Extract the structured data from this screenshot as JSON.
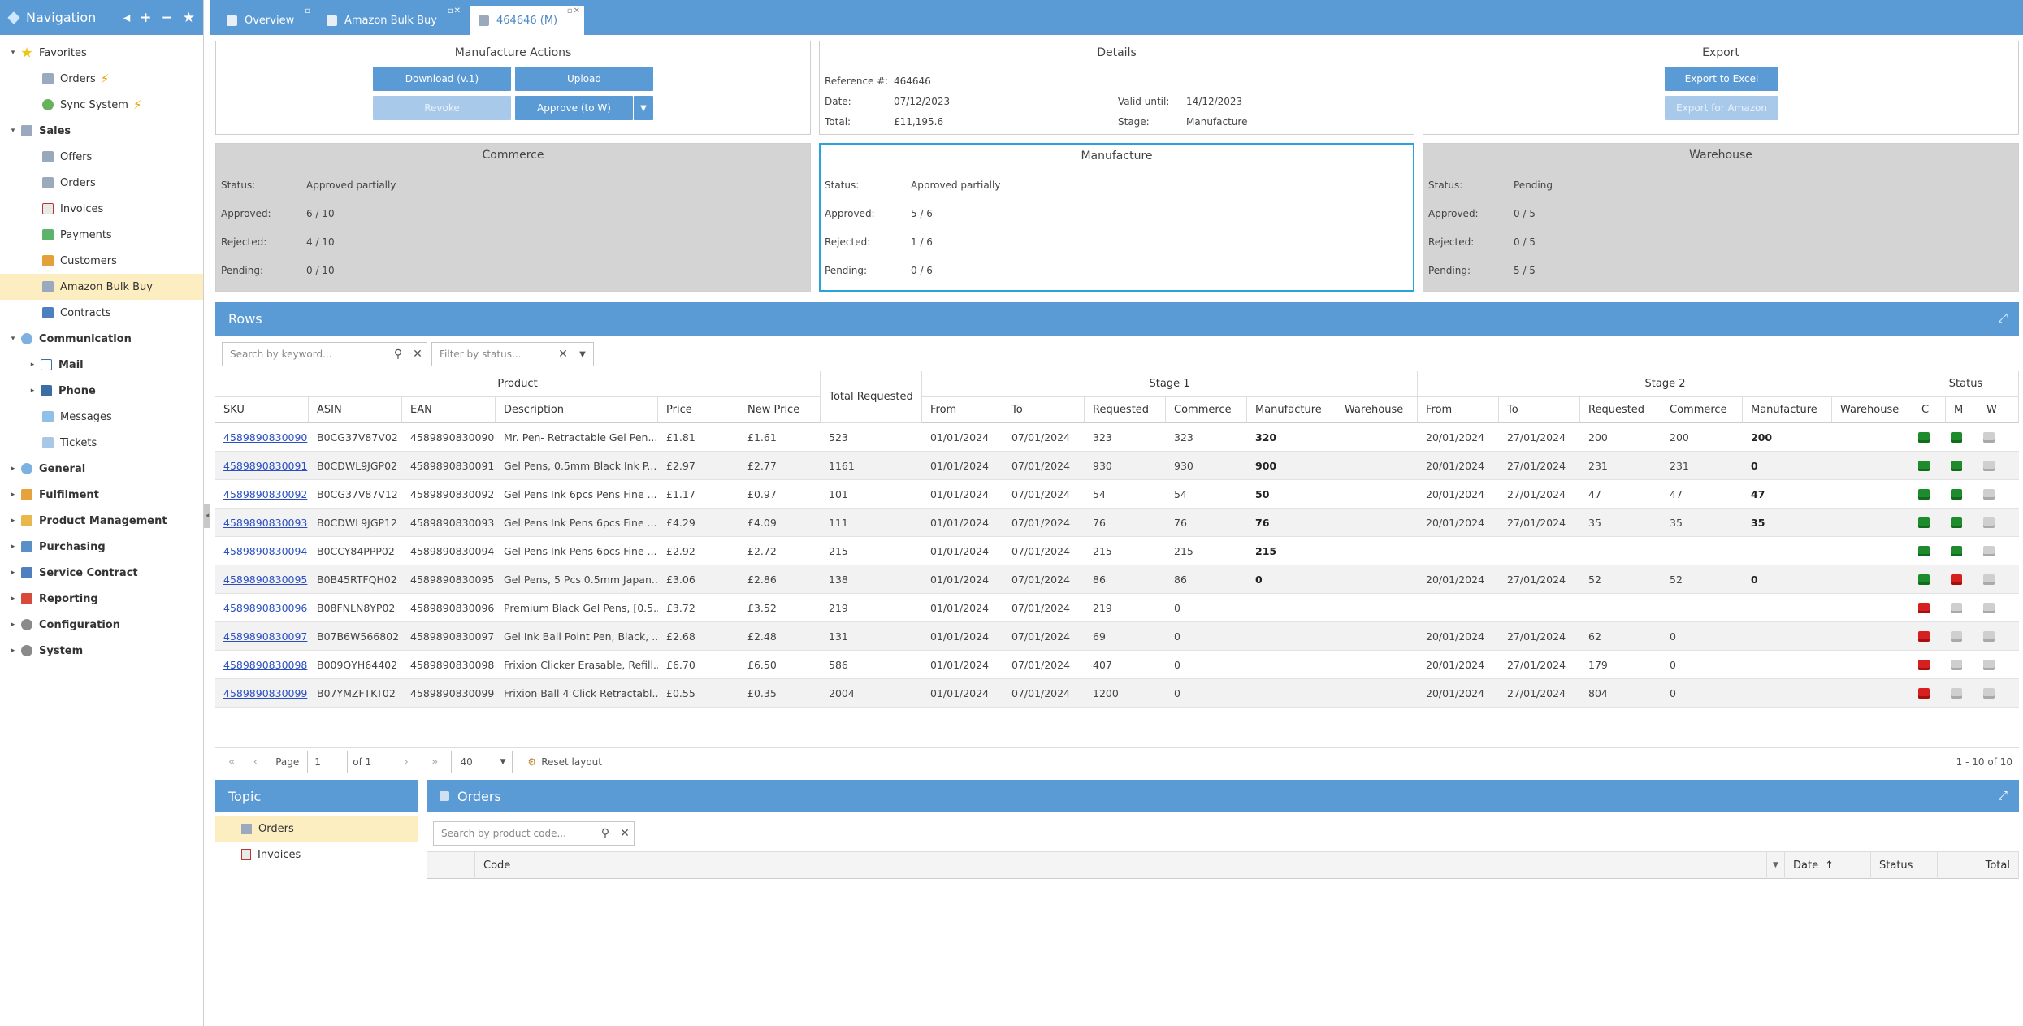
{
  "nav": {
    "title": "Navigation",
    "tree": [
      {
        "label": "Favorites",
        "level": 0,
        "bold": false,
        "arrow": "▾",
        "icon": "star-icon",
        "icls": "star"
      },
      {
        "label": "Orders",
        "level": 2,
        "icon": "box-icon",
        "icls": "box",
        "bolt": true
      },
      {
        "label": "Sync System",
        "level": 2,
        "icon": "sync-icon",
        "icls": "sync",
        "bolt": true
      },
      {
        "label": "Sales",
        "level": 0,
        "bold": true,
        "arrow": "▾",
        "icon": "box-icon",
        "icls": "box"
      },
      {
        "label": "Offers",
        "level": 2,
        "icon": "box-icon",
        "icls": "box"
      },
      {
        "label": "Orders",
        "level": 2,
        "icon": "box-icon",
        "icls": "box"
      },
      {
        "label": "Invoices",
        "level": 2,
        "icon": "invoice-icon",
        "icls": "doc"
      },
      {
        "label": "Payments",
        "level": 2,
        "icon": "cash-icon",
        "icls": "cash"
      },
      {
        "label": "Customers",
        "level": 2,
        "icon": "people-icon",
        "icls": "people"
      },
      {
        "label": "Amazon Bulk Buy",
        "level": 2,
        "icon": "box-icon",
        "icls": "box",
        "selected": true
      },
      {
        "label": "Contracts",
        "level": 2,
        "icon": "contract-icon",
        "icls": "contract"
      },
      {
        "label": "Communication",
        "level": 0,
        "bold": true,
        "arrow": "▾",
        "icon": "comm-icon",
        "icls": "comm"
      },
      {
        "label": "Mail",
        "level": 1,
        "bold": true,
        "arrow": "▸",
        "icon": "mail-icon",
        "icls": "mail"
      },
      {
        "label": "Phone",
        "level": 1,
        "bold": true,
        "arrow": "▸",
        "icon": "phone-icon",
        "icls": "phone"
      },
      {
        "label": "Messages",
        "level": 2,
        "icon": "messages-icon",
        "icls": "msg"
      },
      {
        "label": "Tickets",
        "level": 2,
        "icon": "ticket-icon",
        "icls": "ticket"
      },
      {
        "label": "General",
        "level": 0,
        "bold": true,
        "arrow": "▸",
        "icon": "general-icon",
        "icls": "comm"
      },
      {
        "label": "Fulfilment",
        "level": 0,
        "bold": true,
        "arrow": "▸",
        "icon": "folder-icon",
        "icls": "folder"
      },
      {
        "label": "Product Management",
        "level": 0,
        "bold": true,
        "arrow": "▸",
        "icon": "package-icon",
        "icls": "pm"
      },
      {
        "label": "Purchasing",
        "level": 0,
        "bold": true,
        "arrow": "▸",
        "icon": "cart-icon",
        "icls": "cart"
      },
      {
        "label": "Service Contract",
        "level": 0,
        "bold": true,
        "arrow": "▸",
        "icon": "contract-icon",
        "icls": "contract"
      },
      {
        "label": "Reporting",
        "level": 0,
        "bold": true,
        "arrow": "▸",
        "icon": "report-icon",
        "icls": "report"
      },
      {
        "label": "Configuration",
        "level": 0,
        "bold": true,
        "arrow": "▸",
        "icon": "gear-icon",
        "icls": "gear"
      },
      {
        "label": "System",
        "level": 0,
        "bold": true,
        "arrow": "▸",
        "icon": "gear-icon",
        "icls": "gear"
      }
    ]
  },
  "tabs": [
    {
      "label": "Overview",
      "icon": "home-icon",
      "active": false
    },
    {
      "label": "Amazon Bulk Buy",
      "icon": "box-icon",
      "active": false
    },
    {
      "label": "464646 (M)",
      "icon": "box-icon",
      "active": true
    }
  ],
  "manufacture_actions": {
    "title": "Manufacture Actions",
    "download": "Download (v.1)",
    "upload": "Upload",
    "revoke": "Revoke",
    "approve": "Approve (to W)"
  },
  "details": {
    "title": "Details",
    "reference_label": "Reference #:",
    "reference": "464646",
    "date_label": "Date:",
    "date": "07/12/2023",
    "total_label": "Total:",
    "total": "£11,195.6",
    "valid_label": "Valid until:",
    "valid": "14/12/2023",
    "stage_label": "Stage:",
    "stage": "Manufacture"
  },
  "export": {
    "title": "Export",
    "excel": "Export to Excel",
    "amazon": "Export for Amazon"
  },
  "status_panels": [
    {
      "title": "Commerce",
      "status": "Approved partially",
      "approved": "6 / 10",
      "rejected": "4 / 10",
      "pending": "0 / 10"
    },
    {
      "title": "Manufacture",
      "status": "Approved partially",
      "approved": "5 / 6",
      "rejected": "1 / 6",
      "pending": "0 / 6"
    },
    {
      "title": "Warehouse",
      "status": "Pending",
      "approved": "0 / 5",
      "rejected": "0 / 5",
      "pending": "5 / 5"
    }
  ],
  "status_labels": {
    "status": "Status:",
    "approved": "Approved:",
    "rejected": "Rejected:",
    "pending": "Pending:"
  },
  "rows_panel": {
    "title": "Rows",
    "search_placeholder": "Search by keyword...",
    "filter_placeholder": "Filter by status...",
    "groups": {
      "product": "Product",
      "total": "Total Requested",
      "stage1": "Stage 1",
      "stage2": "Stage 2",
      "status": "Status"
    },
    "columns": [
      "SKU",
      "ASIN",
      "EAN",
      "Description",
      "Price",
      "New Price",
      "From",
      "To",
      "Requested",
      "Commerce",
      "Manufacture",
      "Warehouse",
      "From",
      "To",
      "Requested",
      "Commerce",
      "Manufacture",
      "Warehouse",
      "C",
      "M",
      "W"
    ],
    "rows": [
      {
        "sku": "4589890830090",
        "asin": "B0CG37V87V02",
        "ean": "4589890830090",
        "desc": "Mr. Pen- Retractable Gel Pen...",
        "price": "£1.81",
        "new_price": "£1.61",
        "total": "523",
        "s1": [
          "01/01/2024",
          "07/01/2024",
          "323",
          "323",
          "320",
          ""
        ],
        "s2": [
          "20/01/2024",
          "27/01/2024",
          "200",
          "200",
          "200",
          ""
        ],
        "st": [
          "green",
          "green",
          "gray"
        ]
      },
      {
        "sku": "4589890830091",
        "asin": "B0CDWL9JGP02",
        "ean": "4589890830091",
        "desc": "Gel Pens, 0.5mm Black Ink P...",
        "price": "£2.97",
        "new_price": "£2.77",
        "total": "1161",
        "s1": [
          "01/01/2024",
          "07/01/2024",
          "930",
          "930",
          "900",
          ""
        ],
        "s2": [
          "20/01/2024",
          "27/01/2024",
          "231",
          "231",
          "0",
          ""
        ],
        "st": [
          "green",
          "green",
          "gray"
        ]
      },
      {
        "sku": "4589890830092",
        "asin": "B0CG37V87V12",
        "ean": "4589890830092",
        "desc": "Gel Pens Ink 6pcs Pens Fine ...",
        "price": "£1.17",
        "new_price": "£0.97",
        "total": "101",
        "s1": [
          "01/01/2024",
          "07/01/2024",
          "54",
          "54",
          "50",
          ""
        ],
        "s2": [
          "20/01/2024",
          "27/01/2024",
          "47",
          "47",
          "47",
          ""
        ],
        "st": [
          "green",
          "green",
          "gray"
        ]
      },
      {
        "sku": "4589890830093",
        "asin": "B0CDWL9JGP12",
        "ean": "4589890830093",
        "desc": "Gel Pens Ink Pens 6pcs Fine ...",
        "price": "£4.29",
        "new_price": "£4.09",
        "total": "111",
        "s1": [
          "01/01/2024",
          "07/01/2024",
          "76",
          "76",
          "76",
          ""
        ],
        "s2": [
          "20/01/2024",
          "27/01/2024",
          "35",
          "35",
          "35",
          ""
        ],
        "st": [
          "green",
          "green",
          "gray"
        ]
      },
      {
        "sku": "4589890830094",
        "asin": "B0CCY84PPP02",
        "ean": "4589890830094",
        "desc": "Gel Pens Ink Pens 6pcs Fine ...",
        "price": "£2.92",
        "new_price": "£2.72",
        "total": "215",
        "s1": [
          "01/01/2024",
          "07/01/2024",
          "215",
          "215",
          "215",
          ""
        ],
        "s2": [
          "",
          "",
          "",
          "",
          "",
          ""
        ],
        "st": [
          "green",
          "green",
          "gray"
        ]
      },
      {
        "sku": "4589890830095",
        "asin": "B0B45RTFQH02",
        "ean": "4589890830095",
        "desc": "Gel Pens, 5 Pcs 0.5mm Japan...",
        "price": "£3.06",
        "new_price": "£2.86",
        "total": "138",
        "s1": [
          "01/01/2024",
          "07/01/2024",
          "86",
          "86",
          "0",
          ""
        ],
        "s2": [
          "20/01/2024",
          "27/01/2024",
          "52",
          "52",
          "0",
          ""
        ],
        "st": [
          "green",
          "red",
          "gray"
        ]
      },
      {
        "sku": "4589890830096",
        "asin": "B08FNLN8YP02",
        "ean": "4589890830096",
        "desc": "Premium Black Gel Pens, [0.5...",
        "price": "£3.72",
        "new_price": "£3.52",
        "total": "219",
        "s1": [
          "01/01/2024",
          "07/01/2024",
          "219",
          "0",
          "",
          ""
        ],
        "s2": [
          "",
          "",
          "",
          "",
          "",
          ""
        ],
        "st": [
          "red",
          "gray",
          "gray"
        ]
      },
      {
        "sku": "4589890830097",
        "asin": "B07B6W566802",
        "ean": "4589890830097",
        "desc": "Gel Ink Ball Point Pen, Black, ...",
        "price": "£2.68",
        "new_price": "£2.48",
        "total": "131",
        "s1": [
          "01/01/2024",
          "07/01/2024",
          "69",
          "0",
          "",
          ""
        ],
        "s2": [
          "20/01/2024",
          "27/01/2024",
          "62",
          "0",
          "",
          ""
        ],
        "st": [
          "red",
          "gray",
          "gray"
        ]
      },
      {
        "sku": "4589890830098",
        "asin": "B009QYH64402",
        "ean": "4589890830098",
        "desc": "Frixion Clicker Erasable, Refill...",
        "price": "£6.70",
        "new_price": "£6.50",
        "total": "586",
        "s1": [
          "01/01/2024",
          "07/01/2024",
          "407",
          "0",
          "",
          ""
        ],
        "s2": [
          "20/01/2024",
          "27/01/2024",
          "179",
          "0",
          "",
          ""
        ],
        "st": [
          "red",
          "gray",
          "gray"
        ]
      },
      {
        "sku": "4589890830099",
        "asin": "B07YMZFTKT02",
        "ean": "4589890830099",
        "desc": "Frixion Ball 4 Click Retractabl...",
        "price": "£0.55",
        "new_price": "£0.35",
        "total": "2004",
        "s1": [
          "01/01/2024",
          "07/01/2024",
          "1200",
          "0",
          "",
          ""
        ],
        "s2": [
          "20/01/2024",
          "27/01/2024",
          "804",
          "0",
          "",
          ""
        ],
        "st": [
          "red",
          "gray",
          "gray"
        ]
      }
    ]
  },
  "pager": {
    "page_label": "Page",
    "page": "1",
    "of": "of 1",
    "page_size": "40",
    "reset": "Reset layout",
    "range": "1 - 10 of 10"
  },
  "topic": {
    "title": "Topic",
    "items": [
      "Orders",
      "Invoices"
    ]
  },
  "orders": {
    "title": "Orders",
    "search_placeholder": "Search by product code...",
    "columns": {
      "code": "Code",
      "date": "Date",
      "status": "Status",
      "total": "Total"
    }
  }
}
